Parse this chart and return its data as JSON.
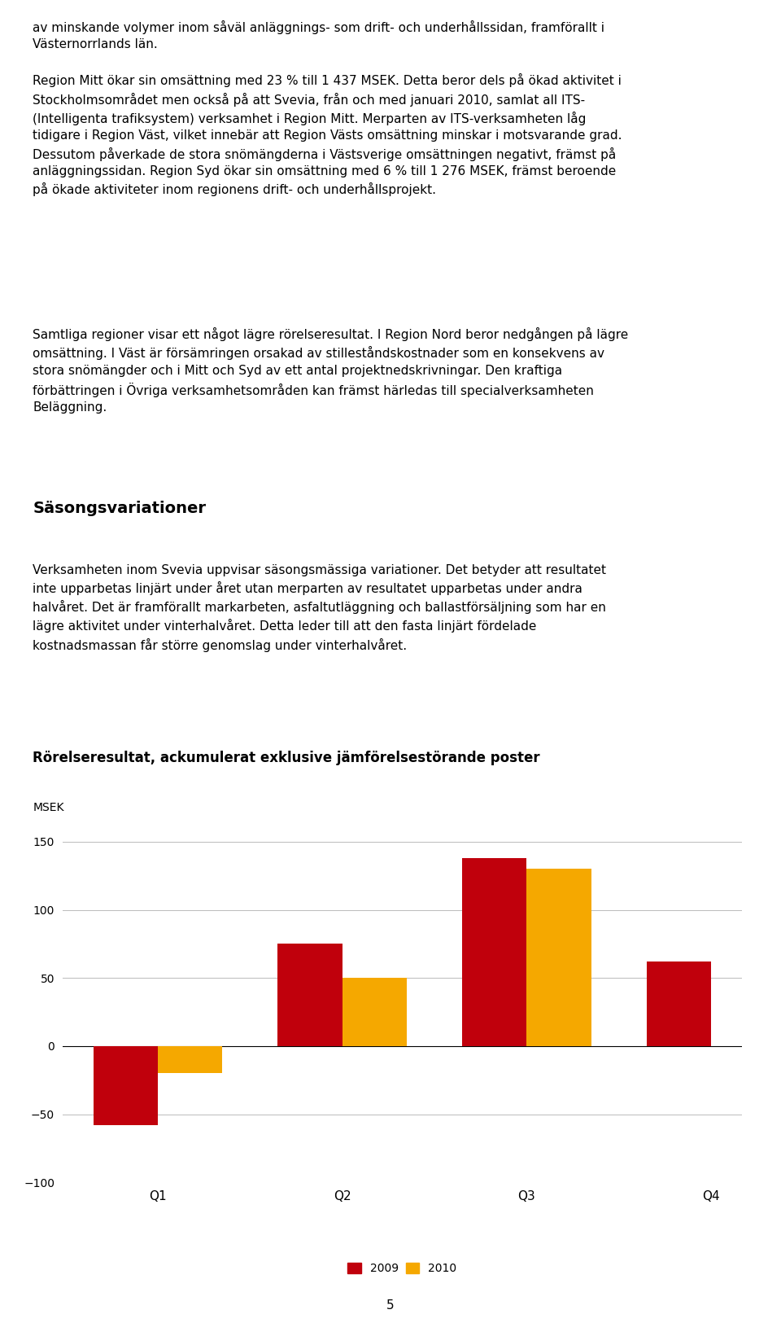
{
  "para1": "av minskande volymer inom såväl anläggnings- som drift- och underhållssidan, framförallt i\nVästernorrlands län.",
  "para2": "Region Mitt ökar sin omsättning med 23 % till 1 437 MSEK. Detta beror dels på ökad aktivitet i\nStockholmsområdet men också på att Svevia, från och med januari 2010, samlat all ITS-\n(Intelligenta trafiksystem) verksamhet i Region Mitt. Merparten av ITS-verksamheten låg\ntidigare i Region Väst, vilket innebär att Region Västs omsättning minskar i motsvarande grad.\nDessutom påverkade de stora snömängderna i Västsverige omsättningen negativt, främst på\nanläggningssidan. Region Syd ökar sin omsättning med 6 % till 1 276 MSEK, främst beroende\npå ökade aktiviteter inom regionens drift- och underhållsprojekt.",
  "para3": "Samtliga regioner visar ett något lägre rörelseresultat. I Region Nord beror nedgången på lägre\nomsättning. I Väst är försämringen orsakad av stilleståndskostnader som en konsekvens av\nstora snömängder och i Mitt och Syd av ett antal projektnedskrivningar. Den kraftiga\nförbättringen i Övriga verksamhetsområden kan främst härledas till specialverksamheten\nBeläggning.",
  "heading": "Säsongsvariationer",
  "para4": "Verksamheten inom Svevia uppvisar säsongsmässiga variationer. Det betyder att resultatet\ninte upparbetas linjärt under året utan merparten av resultatet upparbetas under andra\nhalvåret. Det är framförallt markarbeten, asfaltutläggning och ballastförsäljning som har en\nlägre aktivitet under vinterhalvåret. Detta leder till att den fasta linjärt fördelade\nkostnadsmassan får större genomslag under vinterhalvåret.",
  "chart_title": "Rörelseresultat, ackumulerat exklusive jämförelsestörande poster",
  "ylabel": "MSEK",
  "categories": [
    "Q1",
    "Q2",
    "Q3",
    "Q4"
  ],
  "series_2009": [
    -58,
    75,
    138,
    62
  ],
  "series_2010": [
    -20,
    50,
    130,
    null
  ],
  "color_2009": "#C0000C",
  "color_2010": "#F5A800",
  "ylim": [
    -100,
    150
  ],
  "yticks": [
    -100,
    -50,
    0,
    50,
    100,
    150
  ],
  "legend_labels": [
    "2009",
    "2010"
  ],
  "bar_width": 0.35,
  "page_number": "5",
  "background_color": "#ffffff",
  "text_color": "#000000"
}
